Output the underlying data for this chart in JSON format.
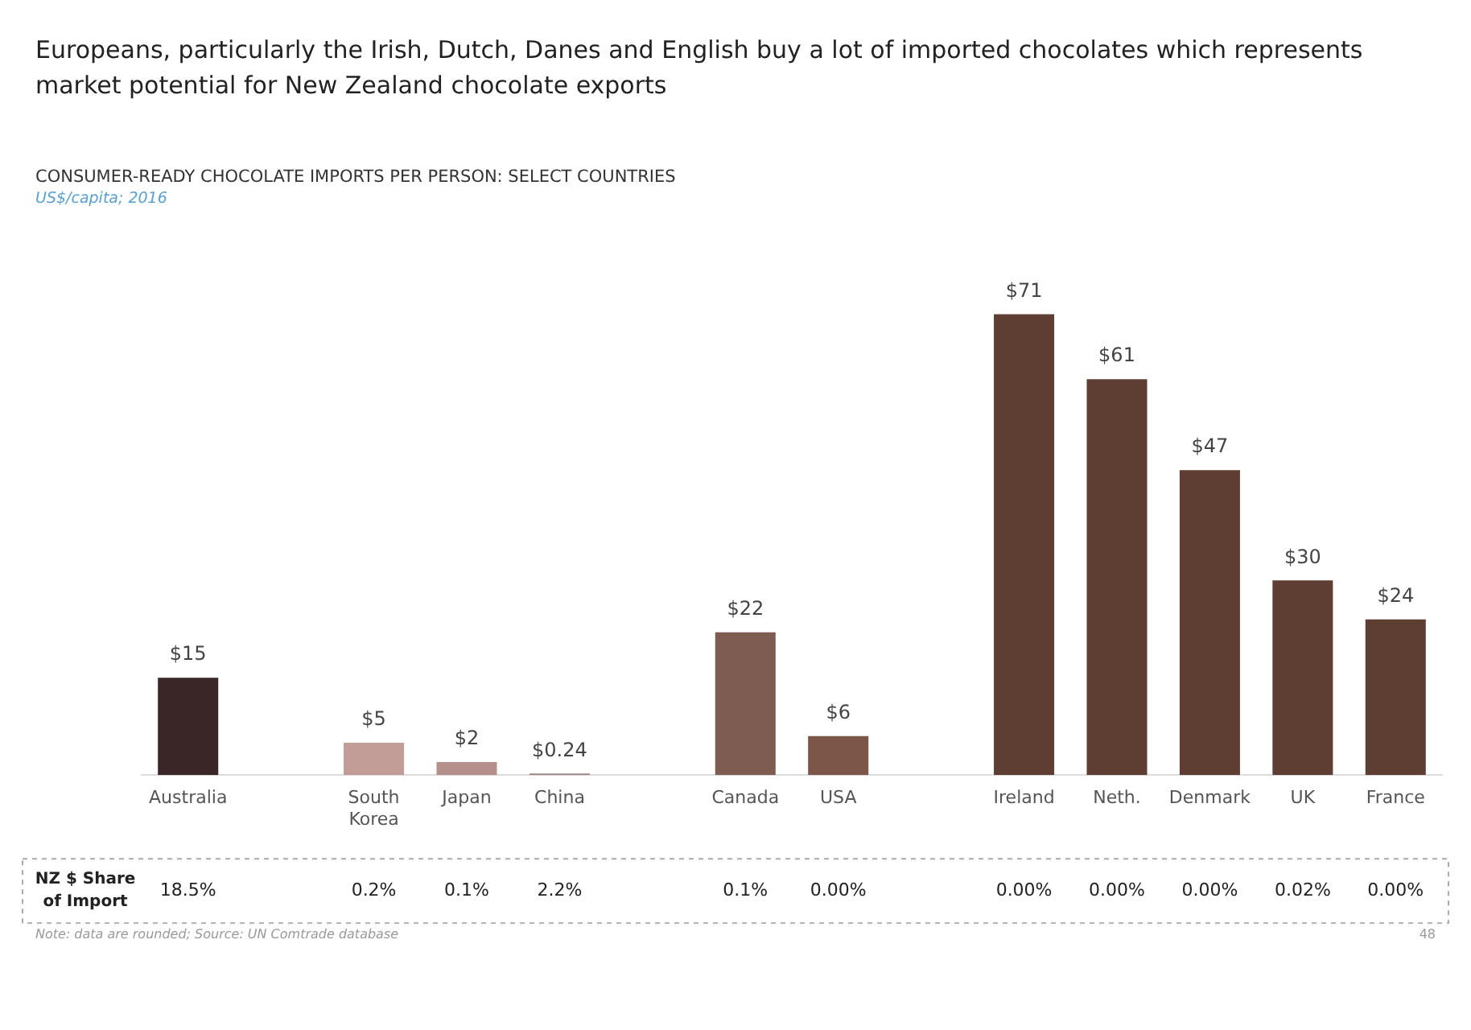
{
  "chart_data": {
    "type": "bar",
    "title": "Europeans, particularly the Irish, Dutch, Danes and English buy a lot of imported chocolates which represents market potential for New Zealand chocolate exports",
    "subtitle": "CONSUMER-READY CHOCOLATE IMPORTS PER PERSON: SELECT COUNTRIES",
    "categories": [
      "Australia",
      null,
      "South Korea",
      "Japan",
      "China",
      null,
      "Canada",
      "USA",
      null,
      "Ireland",
      "Neth.",
      "Denmark",
      "UK",
      "France"
    ],
    "values": [
      15,
      null,
      5,
      2,
      0.24,
      null,
      22,
      6,
      null,
      71,
      61,
      47,
      30,
      24
    ],
    "value_labels": [
      "$15",
      null,
      "$5",
      "$2",
      "$0.24",
      null,
      "$22",
      "$6",
      null,
      "$71",
      "$61",
      "$47",
      "$30",
      "$24"
    ],
    "colors": [
      "#3a2626",
      "#ffffff",
      "#c29c97",
      "#b58f8c",
      "#9c8682",
      "#ffffff",
      "#7f5c51",
      "#7b5649",
      "#ffffff",
      "#5e3e32",
      "#5e3e32",
      "#5e3e32",
      "#5e3e32",
      "#5e3e32"
    ],
    "grid": false,
    "legend": false,
    "annotations": [
      "US$/capita; 2016",
      "NZ $ Share of Import",
      "18.5%",
      "0.2%",
      "0.1%",
      "2.2%",
      "0.1%",
      "0.00%",
      "0.00%",
      "0.00%",
      "0.00%",
      "0.02%",
      "0.00%",
      "Note: data are rounded; Source: UN Comtrade database",
      "48"
    ]
  }
}
